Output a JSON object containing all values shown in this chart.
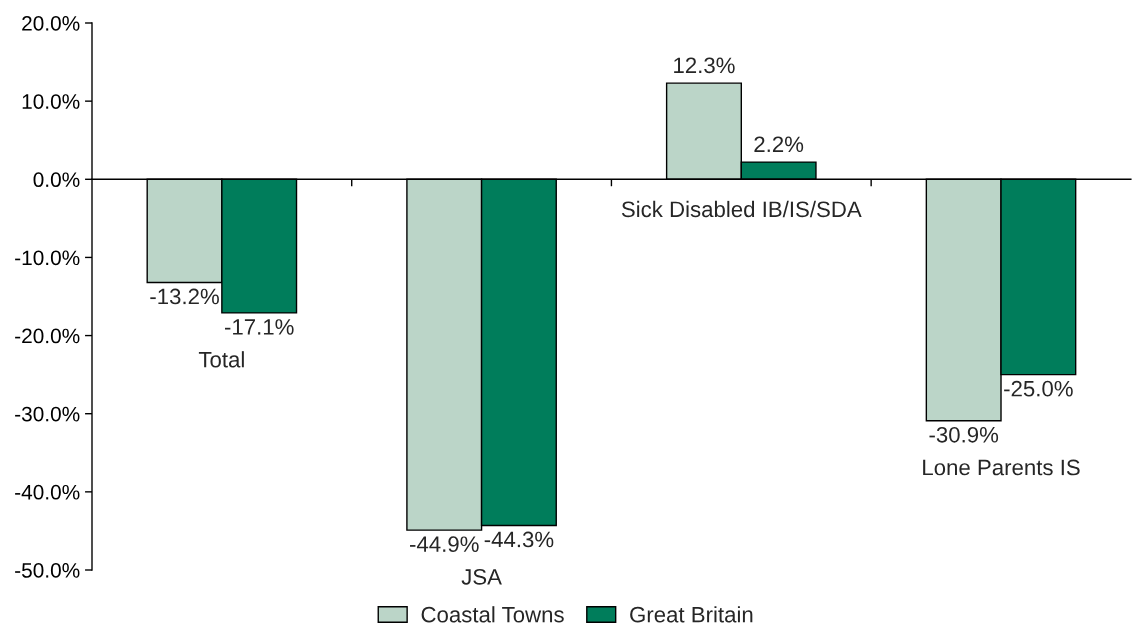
{
  "chart_data": {
    "type": "bar",
    "categories": [
      "Total",
      "JSA",
      "Sick Disabled IB/IS/SDA",
      "Lone Parents IS"
    ],
    "series": [
      {
        "name": "Coastal Towns",
        "color": "#bbd5c8",
        "values": [
          -13.2,
          -44.9,
          12.3,
          -30.9
        ],
        "value_labels": [
          "-13.2%",
          "-44.9%",
          "12.3%",
          "-30.9%"
        ]
      },
      {
        "name": "Great Britain",
        "color": "#007d5b",
        "values": [
          -17.1,
          -44.3,
          2.2,
          -25.0
        ],
        "value_labels": [
          "-17.1%",
          "-44.3%",
          "2.2%",
          "-25.0%"
        ]
      }
    ],
    "ylim": [
      -50,
      20
    ],
    "yticks": [
      {
        "value": -50,
        "label": "-50.0%"
      },
      {
        "value": -40,
        "label": "-40.0%"
      },
      {
        "value": -30,
        "label": "-30.0%"
      },
      {
        "value": -20,
        "label": "-20.0%"
      },
      {
        "value": -10,
        "label": "-10.0%"
      },
      {
        "value": 0,
        "label": "0.0%"
      },
      {
        "value": 10,
        "label": "10.0%"
      },
      {
        "value": 20,
        "label": "20.0%"
      }
    ],
    "legend": "bottom"
  }
}
